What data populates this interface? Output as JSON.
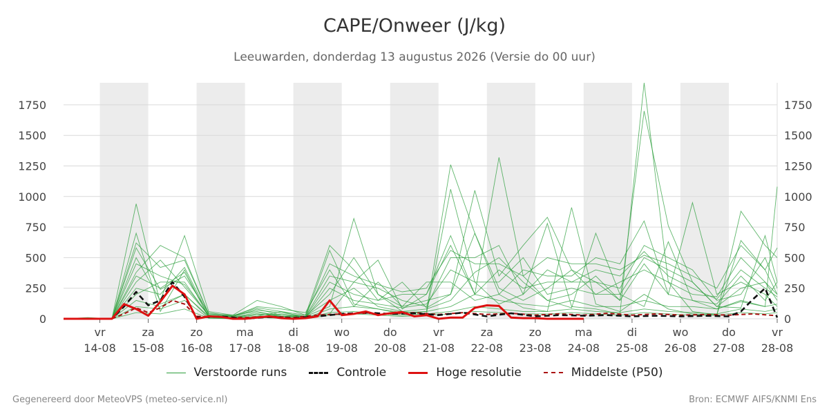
{
  "chart_data": {
    "type": "line",
    "title": "CAPE/Onweer (J/kg)",
    "subtitle": "Leeuwarden, donderdag 13 augustus 2026 (Versie do 00 uur)",
    "xlabel": "",
    "ylabel": "",
    "ylim": [
      0,
      1930
    ],
    "yticks": [
      0,
      250,
      500,
      750,
      1000,
      1250,
      1500,
      1750
    ],
    "xlim": [
      "2026-08-13 06:00",
      "2026-08-28 00:00"
    ],
    "x_ticks": [
      {
        "date": "2026-08-14",
        "day": "vr",
        "label": "14-08"
      },
      {
        "date": "2026-08-15",
        "day": "za",
        "label": "15-08"
      },
      {
        "date": "2026-08-16",
        "day": "zo",
        "label": "16-08"
      },
      {
        "date": "2026-08-17",
        "day": "ma",
        "label": "17-08"
      },
      {
        "date": "2026-08-18",
        "day": "di",
        "label": "18-08"
      },
      {
        "date": "2026-08-19",
        "day": "wo",
        "label": "19-08"
      },
      {
        "date": "2026-08-20",
        "day": "do",
        "label": "20-08"
      },
      {
        "date": "2026-08-21",
        "day": "vr",
        "label": "21-08"
      },
      {
        "date": "2026-08-22",
        "day": "za",
        "label": "22-08"
      },
      {
        "date": "2026-08-23",
        "day": "zo",
        "label": "23-08"
      },
      {
        "date": "2026-08-24",
        "day": "ma",
        "label": "24-08"
      },
      {
        "date": "2026-08-25",
        "day": "di",
        "label": "25-08"
      },
      {
        "date": "2026-08-26",
        "day": "wo",
        "label": "26-08"
      },
      {
        "date": "2026-08-27",
        "day": "do",
        "label": "27-08"
      },
      {
        "date": "2026-08-28",
        "day": "vr",
        "label": "28-08"
      }
    ],
    "shaded_days": [
      "2026-08-14",
      "2026-08-16",
      "2026-08-18",
      "2026-08-20",
      "2026-08-22",
      "2026-08-24",
      "2026-08-26"
    ],
    "grid": true,
    "legend_position": "bottom",
    "series": [
      {
        "name": "Hoge resolutie",
        "color": "#dd1111",
        "style": "solid",
        "points": [
          [
            "2026-08-13 06:00",
            0
          ],
          [
            "2026-08-13 12:00",
            0
          ],
          [
            "2026-08-13 18:00",
            0
          ],
          [
            "2026-08-14 00:00",
            0
          ],
          [
            "2026-08-14 06:00",
            0
          ],
          [
            "2026-08-14 12:00",
            120
          ],
          [
            "2026-08-14 18:00",
            80
          ],
          [
            "2026-08-15 00:00",
            25
          ],
          [
            "2026-08-15 06:00",
            140
          ],
          [
            "2026-08-15 12:00",
            270
          ],
          [
            "2026-08-15 18:00",
            200
          ],
          [
            "2026-08-16 00:00",
            0
          ],
          [
            "2026-08-16 06:00",
            20
          ],
          [
            "2026-08-16 12:00",
            15
          ],
          [
            "2026-08-16 18:00",
            0
          ],
          [
            "2026-08-17 00:00",
            0
          ],
          [
            "2026-08-17 06:00",
            10
          ],
          [
            "2026-08-17 12:00",
            20
          ],
          [
            "2026-08-17 18:00",
            5
          ],
          [
            "2026-08-18 00:00",
            0
          ],
          [
            "2026-08-18 06:00",
            5
          ],
          [
            "2026-08-18 12:00",
            20
          ],
          [
            "2026-08-18 18:00",
            150
          ],
          [
            "2026-08-19 00:00",
            30
          ],
          [
            "2026-08-19 06:00",
            40
          ],
          [
            "2026-08-19 12:00",
            60
          ],
          [
            "2026-08-19 18:00",
            30
          ],
          [
            "2026-08-20 00:00",
            45
          ],
          [
            "2026-08-20 06:00",
            55
          ],
          [
            "2026-08-20 12:00",
            20
          ],
          [
            "2026-08-20 18:00",
            30
          ],
          [
            "2026-08-21 00:00",
            0
          ],
          [
            "2026-08-21 06:00",
            10
          ],
          [
            "2026-08-21 12:00",
            10
          ],
          [
            "2026-08-21 18:00",
            90
          ],
          [
            "2026-08-22 00:00",
            110
          ],
          [
            "2026-08-22 06:00",
            105
          ],
          [
            "2026-08-22 12:00",
            10
          ],
          [
            "2026-08-22 18:00",
            5
          ],
          [
            "2026-08-23 00:00",
            5
          ],
          [
            "2026-08-23 06:00",
            0
          ],
          [
            "2026-08-23 12:00",
            0
          ],
          [
            "2026-08-23 18:00",
            0
          ],
          [
            "2026-08-24 00:00",
            0
          ]
        ]
      },
      {
        "name": "Controle",
        "color": "#111111",
        "style": "dashed",
        "points": [
          [
            "2026-08-13 06:00",
            0
          ],
          [
            "2026-08-13 18:00",
            0
          ],
          [
            "2026-08-14 06:00",
            0
          ],
          [
            "2026-08-14 12:00",
            100
          ],
          [
            "2026-08-14 18:00",
            220
          ],
          [
            "2026-08-15 00:00",
            110
          ],
          [
            "2026-08-15 06:00",
            150
          ],
          [
            "2026-08-15 12:00",
            300
          ],
          [
            "2026-08-15 18:00",
            180
          ],
          [
            "2026-08-16 00:00",
            10
          ],
          [
            "2026-08-16 12:00",
            20
          ],
          [
            "2026-08-17 00:00",
            0
          ],
          [
            "2026-08-17 12:00",
            15
          ],
          [
            "2026-08-18 00:00",
            5
          ],
          [
            "2026-08-18 12:00",
            20
          ],
          [
            "2026-08-19 00:00",
            40
          ],
          [
            "2026-08-19 12:00",
            50
          ],
          [
            "2026-08-20 00:00",
            40
          ],
          [
            "2026-08-20 12:00",
            45
          ],
          [
            "2026-08-21 00:00",
            30
          ],
          [
            "2026-08-21 12:00",
            50
          ],
          [
            "2026-08-22 00:00",
            20
          ],
          [
            "2026-08-22 12:00",
            45
          ],
          [
            "2026-08-23 00:00",
            20
          ],
          [
            "2026-08-23 12:00",
            30
          ],
          [
            "2026-08-24 00:00",
            25
          ],
          [
            "2026-08-24 12:00",
            30
          ],
          [
            "2026-08-25 00:00",
            20
          ],
          [
            "2026-08-25 12:00",
            25
          ],
          [
            "2026-08-26 00:00",
            20
          ],
          [
            "2026-08-26 12:00",
            25
          ],
          [
            "2026-08-27 00:00",
            20
          ],
          [
            "2026-08-27 06:00",
            60
          ],
          [
            "2026-08-27 12:00",
            160
          ],
          [
            "2026-08-27 18:00",
            250
          ],
          [
            "2026-08-28 00:00",
            10
          ]
        ]
      },
      {
        "name": "Middelste (P50)",
        "color": "#aa1111",
        "style": "dashed",
        "points": [
          [
            "2026-08-13 06:00",
            0
          ],
          [
            "2026-08-14 06:00",
            0
          ],
          [
            "2026-08-14 12:00",
            40
          ],
          [
            "2026-08-14 18:00",
            90
          ],
          [
            "2026-08-15 00:00",
            50
          ],
          [
            "2026-08-15 06:00",
            90
          ],
          [
            "2026-08-15 12:00",
            150
          ],
          [
            "2026-08-15 18:00",
            120
          ],
          [
            "2026-08-16 00:00",
            20
          ],
          [
            "2026-08-16 12:00",
            15
          ],
          [
            "2026-08-17 00:00",
            10
          ],
          [
            "2026-08-17 12:00",
            20
          ],
          [
            "2026-08-18 00:00",
            10
          ],
          [
            "2026-08-18 12:00",
            30
          ],
          [
            "2026-08-19 00:00",
            40
          ],
          [
            "2026-08-19 12:00",
            45
          ],
          [
            "2026-08-20 00:00",
            40
          ],
          [
            "2026-08-20 12:00",
            50
          ],
          [
            "2026-08-21 00:00",
            35
          ],
          [
            "2026-08-21 12:00",
            50
          ],
          [
            "2026-08-22 00:00",
            35
          ],
          [
            "2026-08-22 12:00",
            45
          ],
          [
            "2026-08-23 00:00",
            30
          ],
          [
            "2026-08-23 12:00",
            40
          ],
          [
            "2026-08-24 00:00",
            30
          ],
          [
            "2026-08-24 12:00",
            45
          ],
          [
            "2026-08-25 00:00",
            30
          ],
          [
            "2026-08-25 12:00",
            40
          ],
          [
            "2026-08-26 00:00",
            30
          ],
          [
            "2026-08-26 12:00",
            35
          ],
          [
            "2026-08-27 00:00",
            30
          ],
          [
            "2026-08-27 12:00",
            40
          ],
          [
            "2026-08-28 00:00",
            25
          ]
        ]
      }
    ],
    "ensemble": {
      "name": "Verstoorde runs",
      "color": "#2a9d3a",
      "times": [
        "2026-08-13 06:00",
        "2026-08-13 18:00",
        "2026-08-14 06:00",
        "2026-08-14 18:00",
        "2026-08-15 06:00",
        "2026-08-15 18:00",
        "2026-08-16 06:00",
        "2026-08-16 18:00",
        "2026-08-17 06:00",
        "2026-08-17 18:00",
        "2026-08-18 06:00",
        "2026-08-18 18:00",
        "2026-08-19 06:00",
        "2026-08-19 18:00",
        "2026-08-20 06:00",
        "2026-08-20 18:00",
        "2026-08-21 06:00",
        "2026-08-21 18:00",
        "2026-08-22 06:00",
        "2026-08-22 18:00",
        "2026-08-23 06:00",
        "2026-08-23 18:00",
        "2026-08-24 06:00",
        "2026-08-24 18:00",
        "2026-08-25 06:00",
        "2026-08-25 18:00",
        "2026-08-26 06:00",
        "2026-08-26 18:00",
        "2026-08-27 06:00",
        "2026-08-27 18:00",
        "2026-08-28 00:00"
      ],
      "runs": [
        [
          0,
          0,
          0,
          940,
          120,
          200,
          20,
          10,
          40,
          20,
          10,
          560,
          120,
          80,
          40,
          60,
          1260,
          700,
          200,
          90,
          60,
          910,
          120,
          60,
          200,
          80,
          40,
          30,
          880,
          600,
          500
        ],
        [
          0,
          0,
          0,
          300,
          480,
          260,
          30,
          20,
          80,
          30,
          20,
          100,
          820,
          200,
          60,
          40,
          1060,
          300,
          120,
          200,
          780,
          100,
          80,
          40,
          1930,
          300,
          60,
          30,
          640,
          400,
          580
        ],
        [
          0,
          0,
          0,
          700,
          60,
          400,
          10,
          5,
          20,
          60,
          10,
          40,
          300,
          480,
          80,
          200,
          680,
          200,
          1320,
          350,
          150,
          90,
          700,
          200,
          100,
          630,
          150,
          80,
          140,
          100,
          1080
        ],
        [
          0,
          10,
          0,
          380,
          600,
          500,
          40,
          30,
          150,
          100,
          30,
          600,
          400,
          150,
          300,
          90,
          200,
          1050,
          350,
          600,
          830,
          400,
          300,
          150,
          1700,
          760,
          300,
          100,
          90,
          680,
          300
        ],
        [
          0,
          0,
          0,
          500,
          150,
          680,
          60,
          30,
          60,
          20,
          20,
          200,
          500,
          200,
          100,
          300,
          300,
          150,
          200,
          400,
          350,
          350,
          500,
          450,
          800,
          200,
          950,
          200,
          300,
          200,
          100
        ],
        [
          0,
          0,
          0,
          200,
          300,
          300,
          20,
          10,
          30,
          40,
          15,
          300,
          200,
          150,
          200,
          200,
          600,
          200,
          400,
          250,
          300,
          300,
          300,
          250,
          600,
          500,
          400,
          150,
          200,
          500,
          250
        ],
        [
          0,
          5,
          0,
          580,
          240,
          350,
          50,
          20,
          100,
          80,
          50,
          400,
          100,
          300,
          100,
          150,
          200,
          700,
          250,
          150,
          250,
          400,
          200,
          300,
          400,
          300,
          200,
          180,
          500,
          300,
          200
        ],
        [
          0,
          0,
          0,
          250,
          200,
          420,
          30,
          15,
          50,
          30,
          20,
          150,
          250,
          100,
          60,
          80,
          150,
          380,
          500,
          300,
          150,
          200,
          350,
          150,
          450,
          200,
          150,
          120,
          350,
          150,
          300
        ],
        [
          0,
          0,
          0,
          150,
          100,
          200,
          10,
          5,
          20,
          10,
          5,
          80,
          100,
          80,
          50,
          60,
          100,
          200,
          150,
          120,
          100,
          150,
          100,
          100,
          150,
          100,
          100,
          80,
          150,
          100,
          120
        ],
        [
          0,
          0,
          0,
          100,
          80,
          150,
          5,
          5,
          10,
          5,
          5,
          50,
          60,
          40,
          30,
          40,
          60,
          100,
          80,
          60,
          60,
          80,
          60,
          50,
          80,
          60,
          50,
          40,
          80,
          60,
          80
        ],
        [
          0,
          0,
          0,
          350,
          250,
          380,
          20,
          10,
          40,
          20,
          10,
          250,
          150,
          120,
          90,
          120,
          400,
          300,
          300,
          500,
          200,
          250,
          200,
          200,
          500,
          400,
          300,
          100,
          250,
          300,
          150
        ],
        [
          0,
          0,
          0,
          450,
          350,
          280,
          30,
          20,
          70,
          50,
          20,
          350,
          300,
          250,
          150,
          100,
          500,
          500,
          600,
          200,
          400,
          300,
          400,
          350,
          550,
          350,
          250,
          160,
          400,
          250,
          180
        ],
        [
          0,
          0,
          0,
          50,
          40,
          80,
          5,
          0,
          10,
          5,
          0,
          30,
          40,
          30,
          20,
          30,
          40,
          60,
          50,
          40,
          40,
          50,
          40,
          30,
          50,
          40,
          30,
          30,
          50,
          40,
          50
        ],
        [
          0,
          0,
          0,
          620,
          420,
          480,
          40,
          25,
          90,
          60,
          30,
          450,
          350,
          280,
          220,
          250,
          560,
          450,
          450,
          350,
          500,
          450,
          450,
          400,
          520,
          450,
          350,
          250,
          600,
          400,
          200
        ]
      ]
    }
  },
  "legend": {
    "ensemble_label": "Verstoorde runs",
    "control_label": "Controle",
    "highres_label": "Hoge resolutie",
    "median_label": "Middelste (P50)"
  },
  "footer": {
    "left": "Gegenereerd door MeteoVPS (meteo-service.nl)",
    "right": "Bron: ECMWF AIFS/KNMI Ens"
  }
}
